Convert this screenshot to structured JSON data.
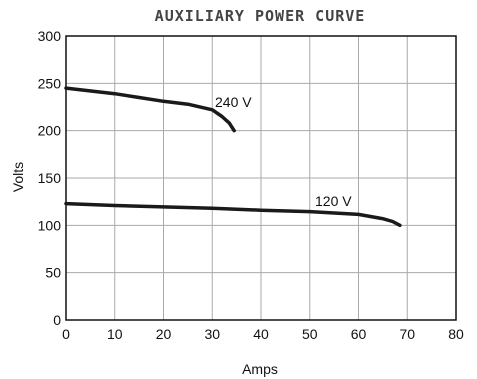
{
  "chart_data": {
    "type": "line",
    "title": "AUXILIARY POWER CURVE",
    "xlabel": "Amps",
    "ylabel": "Volts",
    "xlim": [
      0,
      80
    ],
    "ylim": [
      0,
      300
    ],
    "x_ticks": [
      0,
      10,
      20,
      30,
      40,
      50,
      60,
      70,
      80
    ],
    "y_ticks": [
      0,
      50,
      100,
      150,
      200,
      250,
      300
    ],
    "grid": true,
    "legend": "none",
    "series": [
      {
        "name": "240 V",
        "color": "#1a1a1a",
        "points": [
          [
            0,
            245
          ],
          [
            10,
            239
          ],
          [
            15,
            235
          ],
          [
            20,
            231
          ],
          [
            25,
            228
          ],
          [
            30,
            222
          ],
          [
            32,
            215
          ],
          [
            33.5,
            208
          ],
          [
            34.5,
            200
          ]
        ]
      },
      {
        "name": "120 V",
        "color": "#1a1a1a",
        "points": [
          [
            0,
            123
          ],
          [
            10,
            121
          ],
          [
            20,
            119.5
          ],
          [
            30,
            118
          ],
          [
            40,
            116
          ],
          [
            50,
            114.5
          ],
          [
            60,
            111.5
          ],
          [
            65,
            107
          ],
          [
            67,
            104
          ],
          [
            68.5,
            100
          ]
        ]
      }
    ]
  }
}
